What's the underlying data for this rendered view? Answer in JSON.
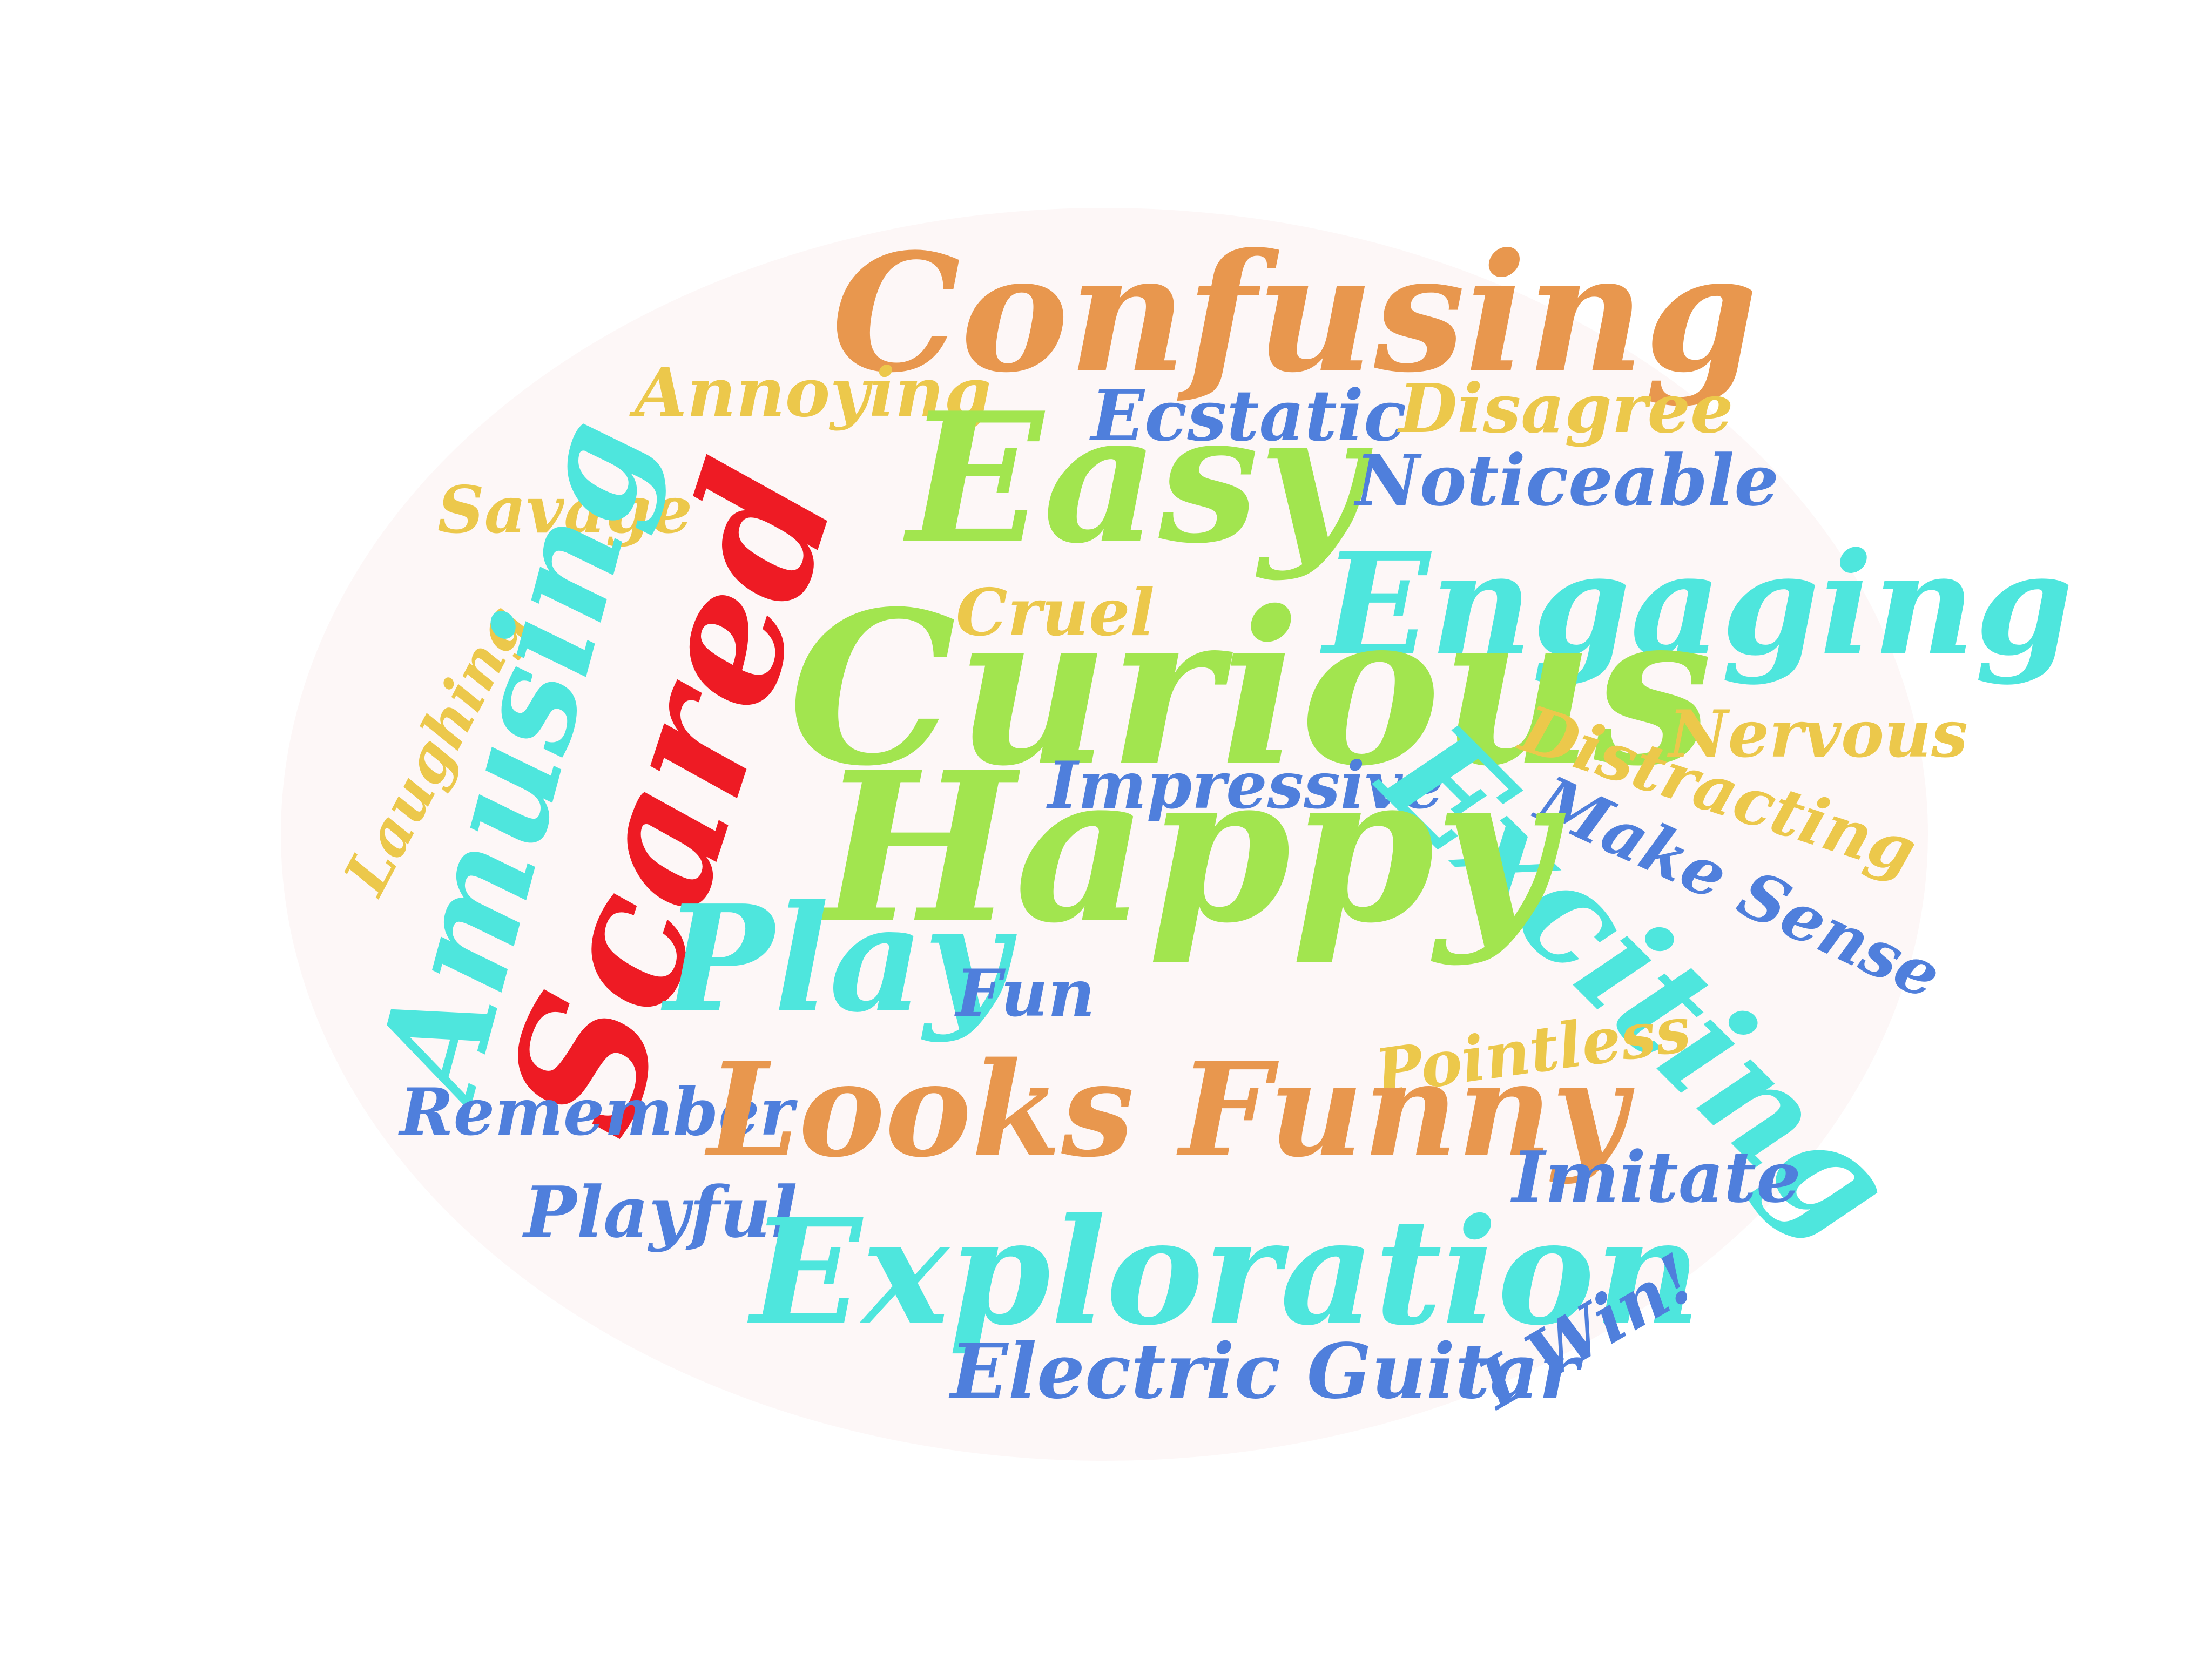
{
  "colors": {
    "orange": "#e8974e",
    "green": "#a2e54f",
    "teal": "#4ee6dd",
    "yellow": "#ecc84b",
    "blue": "#4f7fdc",
    "red": "#ee1b24",
    "oval": "#fdf7f7"
  },
  "words": [
    {
      "text": "Confusing",
      "color": "orange"
    },
    {
      "text": "Annoying",
      "color": "yellow"
    },
    {
      "text": "Ecstatic",
      "color": "blue"
    },
    {
      "text": "Disagree",
      "color": "yellow"
    },
    {
      "text": "Easy",
      "color": "green"
    },
    {
      "text": "Noticeable",
      "color": "blue"
    },
    {
      "text": "Savage",
      "color": "yellow"
    },
    {
      "text": "Scared",
      "color": "red"
    },
    {
      "text": "Cruel",
      "color": "yellow"
    },
    {
      "text": "Engaging",
      "color": "teal"
    },
    {
      "text": "Curious",
      "color": "green"
    },
    {
      "text": "Laughing",
      "color": "yellow"
    },
    {
      "text": "Amusing",
      "color": "teal"
    },
    {
      "text": "Distracting",
      "color": "yellow"
    },
    {
      "text": "Nervous",
      "color": "yellow"
    },
    {
      "text": "Impressive",
      "color": "blue"
    },
    {
      "text": "Exciting",
      "color": "teal"
    },
    {
      "text": "Make Sense",
      "color": "blue"
    },
    {
      "text": "Happy",
      "color": "green"
    },
    {
      "text": "Play",
      "color": "teal"
    },
    {
      "text": "Fun",
      "color": "blue"
    },
    {
      "text": "Pointless",
      "color": "yellow"
    },
    {
      "text": "Remember",
      "color": "blue"
    },
    {
      "text": "Looks Funny",
      "color": "orange"
    },
    {
      "text": "Imitate",
      "color": "blue"
    },
    {
      "text": "Playful",
      "color": "blue"
    },
    {
      "text": "Exploration",
      "color": "teal"
    },
    {
      "text": "I Win!",
      "color": "blue"
    },
    {
      "text": "Electric Guitar",
      "color": "blue"
    }
  ]
}
